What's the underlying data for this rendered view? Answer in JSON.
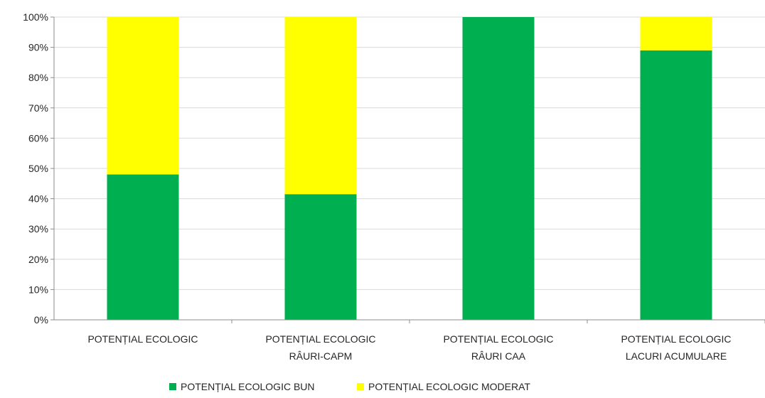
{
  "chart_data": {
    "type": "bar",
    "stacked": true,
    "percent_stacked": true,
    "categories": [
      [
        "POTENȚIAL ECOLOGIC"
      ],
      [
        "POTENȚIAL  ECOLOGIC",
        "RÂURI-CAPM"
      ],
      [
        "POTENȚIAL ECOLOGIC",
        "RÂURI CAA"
      ],
      [
        "POTENȚIAL ECOLOGIC",
        "LACURI ACUMULARE"
      ]
    ],
    "series": [
      {
        "name": "POTENȚIAL ECOLOGIC BUN",
        "color": "#00b050",
        "values": [
          48,
          41.5,
          100,
          89
        ]
      },
      {
        "name": "POTENȚIAL ECOLOGIC MODERAT",
        "color": "#ffff00",
        "values": [
          52,
          58.5,
          0,
          11
        ]
      }
    ],
    "yticks": [
      "0%",
      "10%",
      "20%",
      "30%",
      "40%",
      "50%",
      "60%",
      "70%",
      "80%",
      "90%",
      "100%"
    ],
    "ylim": [
      0,
      100
    ],
    "grid": true,
    "legend_position": "bottom"
  }
}
